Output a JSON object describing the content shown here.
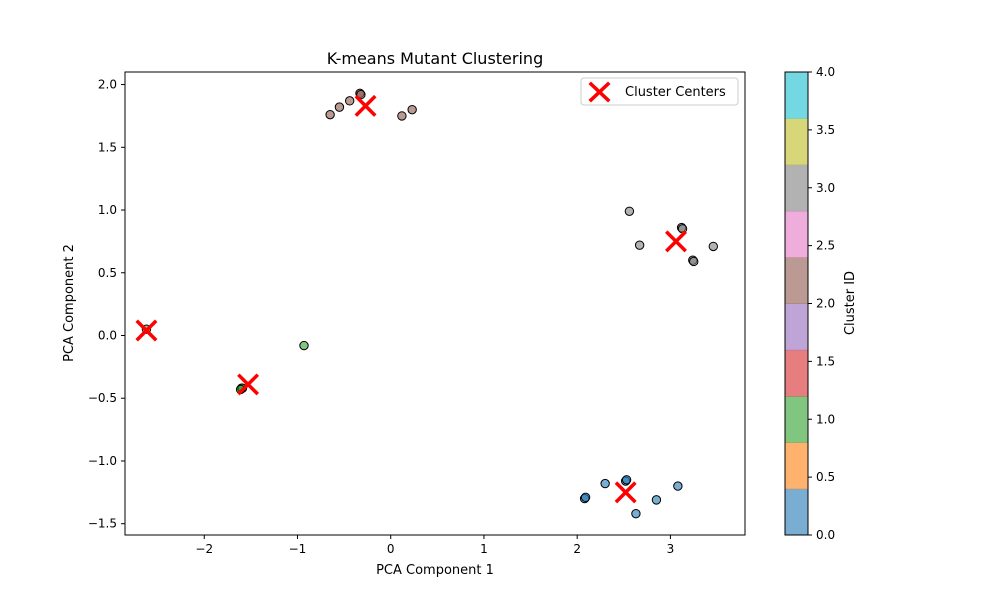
{
  "chart_data": {
    "type": "scatter",
    "title": "K-means Mutant Clustering",
    "xlabel": "PCA Component 1",
    "ylabel": "PCA Component 2",
    "xlim": [
      -2.85,
      3.8
    ],
    "ylim": [
      -1.59,
      2.1
    ],
    "xticks": [
      -2,
      -1,
      0,
      1,
      2,
      3
    ],
    "yticks": [
      -1.5,
      -1.0,
      -0.5,
      0.0,
      0.5,
      1.0,
      1.5,
      2.0
    ],
    "xtick_labels": [
      "−2",
      "−1",
      "0",
      "1",
      "2",
      "3"
    ],
    "ytick_labels": [
      "−1.5",
      "−1.0",
      "−0.5",
      "0.0",
      "0.5",
      "1.0",
      "1.5",
      "2.0"
    ],
    "grid": false,
    "legend": {
      "placement": "top-right",
      "entries": [
        "Cluster Centers"
      ]
    },
    "points": [
      {
        "x": -0.65,
        "y": 1.76,
        "cluster": 2
      },
      {
        "x": -0.55,
        "y": 1.82,
        "cluster": 2
      },
      {
        "x": -0.44,
        "y": 1.87,
        "cluster": 2
      },
      {
        "x": -0.33,
        "y": 1.93,
        "cluster": 2
      },
      {
        "x": -0.32,
        "y": 1.92,
        "cluster": 2
      },
      {
        "x": 0.12,
        "y": 1.75,
        "cluster": 2
      },
      {
        "x": 0.23,
        "y": 1.8,
        "cluster": 2
      },
      {
        "x": 2.56,
        "y": 0.99,
        "cluster": 3
      },
      {
        "x": 2.67,
        "y": 0.72,
        "cluster": 3
      },
      {
        "x": 3.12,
        "y": 0.86,
        "cluster": 3
      },
      {
        "x": 3.13,
        "y": 0.85,
        "cluster": 3
      },
      {
        "x": 3.24,
        "y": 0.6,
        "cluster": 3
      },
      {
        "x": 3.25,
        "y": 0.59,
        "cluster": 3
      },
      {
        "x": 3.46,
        "y": 0.71,
        "cluster": 3
      },
      {
        "x": -2.62,
        "y": 0.05,
        "cluster": 1
      },
      {
        "x": -1.6,
        "y": -0.42,
        "cluster": 1
      },
      {
        "x": -1.59,
        "y": -0.42,
        "cluster": 1
      },
      {
        "x": -1.61,
        "y": -0.43,
        "cluster": 1
      },
      {
        "x": -0.93,
        "y": -0.08,
        "cluster": 1
      },
      {
        "x": 2.08,
        "y": -1.3,
        "cluster": 0
      },
      {
        "x": 2.09,
        "y": -1.29,
        "cluster": 0
      },
      {
        "x": 2.3,
        "y": -1.18,
        "cluster": 0
      },
      {
        "x": 2.52,
        "y": -1.16,
        "cluster": 0
      },
      {
        "x": 2.53,
        "y": -1.15,
        "cluster": 0
      },
      {
        "x": 2.63,
        "y": -1.42,
        "cluster": 0
      },
      {
        "x": 2.85,
        "y": -1.31,
        "cluster": 0
      },
      {
        "x": 3.08,
        "y": -1.2,
        "cluster": 0
      }
    ],
    "centers": [
      {
        "x": -0.27,
        "y": 1.83
      },
      {
        "x": 3.06,
        "y": 0.75
      },
      {
        "x": -2.62,
        "y": 0.04
      },
      {
        "x": -1.53,
        "y": -0.39
      },
      {
        "x": 2.52,
        "y": -1.25
      }
    ],
    "colorbar": {
      "label": "Cluster ID",
      "range": [
        0,
        4
      ],
      "tick_labels": [
        "0.0",
        "0.5",
        "1.0",
        "1.5",
        "2.0",
        "2.5",
        "3.0",
        "3.5",
        "4.0"
      ],
      "colors": [
        "#1f77b4",
        "#ff7f0e",
        "#2ca02c",
        "#d62728",
        "#9467bd",
        "#8c564b",
        "#e377c2",
        "#7f7f7f",
        "#bcbd22",
        "#17becf"
      ]
    },
    "center_color": "#ff0000"
  }
}
